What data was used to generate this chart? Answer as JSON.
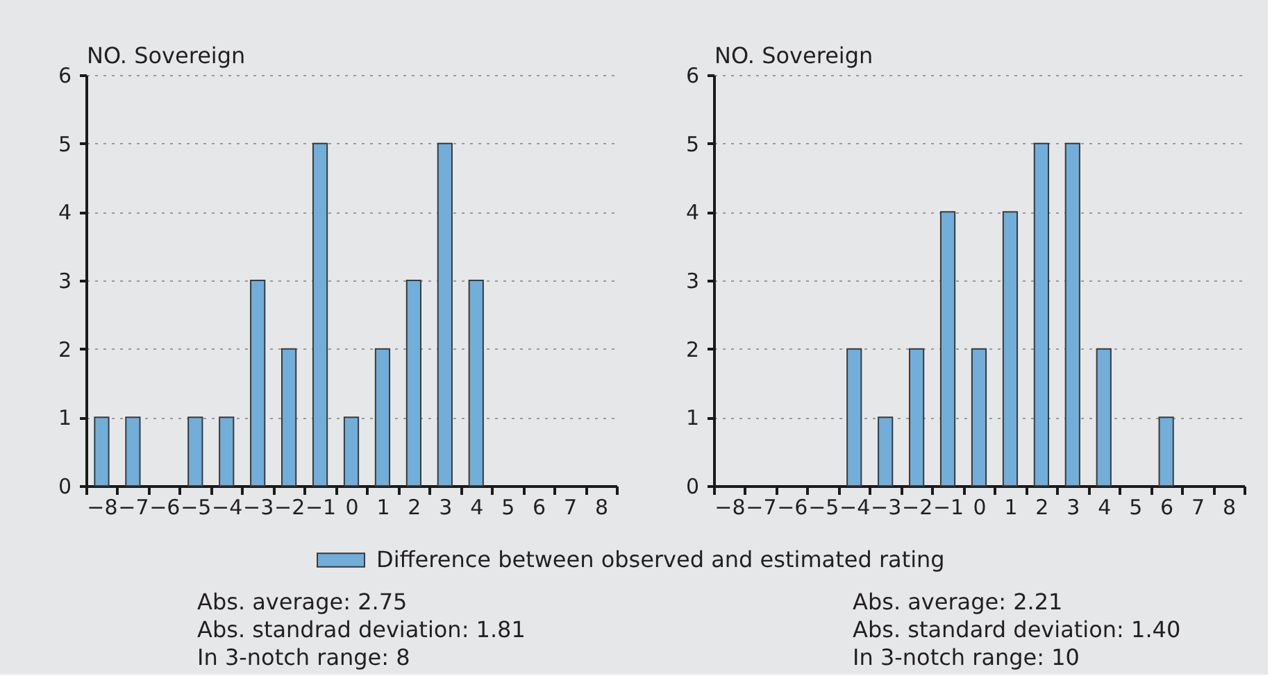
{
  "chart_data": [
    {
      "type": "bar",
      "ylabel": "NO. Sovereign",
      "categories": [
        "−8",
        "−7",
        "−6",
        "−5",
        "−4",
        "−3",
        "−2",
        "−1",
        "0",
        "1",
        "2",
        "3",
        "4",
        "5",
        "6",
        "7",
        "8"
      ],
      "series": [
        {
          "name": "Difference between observed and estimated rating",
          "color": "#71aed9",
          "values": [
            1,
            1,
            0,
            1,
            1,
            3,
            2,
            5,
            1,
            2,
            3,
            5,
            3,
            0,
            0,
            0,
            0
          ]
        }
      ],
      "ylim": [
        0,
        6
      ],
      "yticks": [
        0,
        1,
        2,
        3,
        4,
        5,
        6
      ],
      "grid": "y",
      "legend": "bottom",
      "annotations": [
        "Abs. average: 2.75",
        "Abs. standrad deviation: 1.81",
        "In 3-notch range: 8"
      ]
    },
    {
      "type": "bar",
      "ylabel": "NO. Sovereign",
      "categories": [
        "−8",
        "−7",
        "−6",
        "−5",
        "−4",
        "−3",
        "−2",
        "−1",
        "0",
        "1",
        "2",
        "3",
        "4",
        "5",
        "6",
        "7",
        "8"
      ],
      "series": [
        {
          "name": "Difference between observed and estimated rating",
          "color": "#71aed9",
          "values": [
            0,
            0,
            0,
            0,
            2,
            1,
            2,
            4,
            2,
            4,
            5,
            5,
            2,
            0,
            1,
            0,
            0
          ]
        }
      ],
      "ylim": [
        0,
        6
      ],
      "yticks": [
        0,
        1,
        2,
        3,
        4,
        5,
        6
      ],
      "grid": "y",
      "legend": "bottom",
      "annotations": [
        "Abs. average: 2.21",
        "Abs. standard deviation: 1.40",
        "In 3-notch range: 10"
      ]
    }
  ]
}
